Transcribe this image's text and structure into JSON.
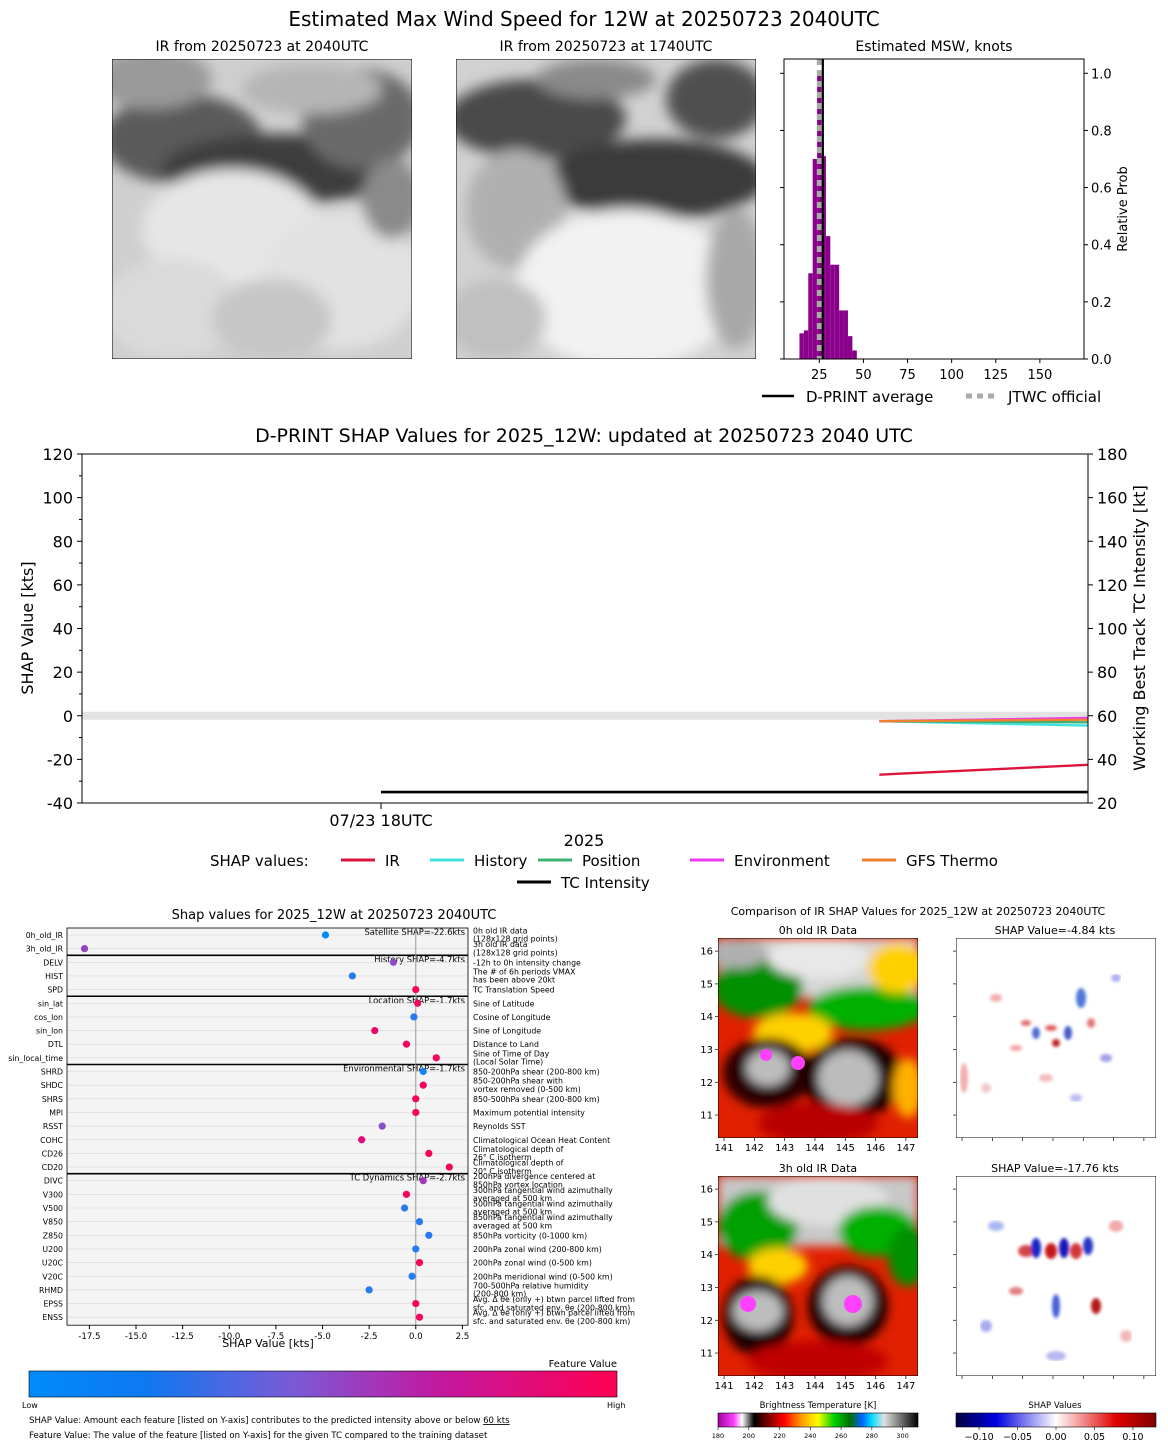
{
  "header": {
    "main_title": "Estimated Max Wind Speed for 12W at 20250723 2040UTC",
    "ir_now_title": "IR from 20250723 at 2040UTC",
    "ir_prev_title": "IR from 20250723 at 1740UTC",
    "hist_title": "Estimated MSW, knots",
    "hist_ylabel": "Relative Prob",
    "legend_dprint": "D-PRINT average",
    "legend_jtwc": "JTWC official"
  },
  "ts": {
    "title": "D-PRINT SHAP Values for 2025_12W: updated at 20250723 2040 UTC",
    "ylabel_left": "SHAP Value [kts]",
    "ylabel_right": "Working Best Track TC Intensity [kt]",
    "xtick": "07/23 18UTC",
    "xlabel": "2025",
    "legend_prefix": "SHAP values:",
    "legend": [
      "IR",
      "History",
      "Position",
      "Environment",
      "GFS Thermo",
      "TC Intensity"
    ]
  },
  "bee": {
    "title": "Shap values for 2025_12W at 20250723 2040UTC",
    "xlabel": "SHAP Value [kts]",
    "group_labels": [
      "Satellite SHAP=-22.6kts",
      "History SHAP=-4.7kts",
      "Location SHAP=-1.7kts",
      "Environmental SHAP=-1.7kts",
      "TC Dynamics SHAP=-2.7kts"
    ],
    "colorbar_title": "Feature Value",
    "colorbar_low": "Low",
    "colorbar_high": "High",
    "note1_pre": "SHAP Value: Amount each feature [listed on Y-axis] contributes to the predicted intensity above or below ",
    "note1_u": "60 kts",
    "note2": "Feature Value: The value of the feature [listed on Y-axis] for the given TC compared to the training dataset"
  },
  "ircmp": {
    "title": "Comparison of IR SHAP Values for 2025_12W at 20250723 2040UTC",
    "p1_title": "0h old IR Data",
    "p2_title": "SHAP Value=-4.84 kts",
    "p3_title": "3h old IR Data",
    "p4_title": "SHAP Value=-17.76 kts",
    "cb1_label": "Brightness Temperature [K]",
    "cb2_label": "SHAP Values"
  },
  "chart_data": [
    {
      "type": "bar",
      "name": "msw-histogram",
      "title": "Estimated MSW, knots",
      "ylabel": "Relative Prob",
      "xlim": [
        5,
        175
      ],
      "ylim": [
        0,
        1.05
      ],
      "xticks": [
        25,
        50,
        75,
        100,
        125,
        150
      ],
      "yticks": [
        0.0,
        0.2,
        0.4,
        0.6,
        0.8,
        1.0
      ],
      "bin_width": 2.5,
      "bins": [
        {
          "x": 15,
          "y": 0.09
        },
        {
          "x": 17.5,
          "y": 0.1
        },
        {
          "x": 20,
          "y": 0.3
        },
        {
          "x": 22.5,
          "y": 0.7
        },
        {
          "x": 25,
          "y": 1.0
        },
        {
          "x": 27.5,
          "y": 0.71
        },
        {
          "x": 30,
          "y": 0.43
        },
        {
          "x": 32.5,
          "y": 0.33
        },
        {
          "x": 35,
          "y": 0.33
        },
        {
          "x": 37.5,
          "y": 0.17
        },
        {
          "x": 40,
          "y": 0.17
        },
        {
          "x": 42.5,
          "y": 0.08
        },
        {
          "x": 45,
          "y": 0.03
        }
      ],
      "dprint_average": 27,
      "jtwc_official": 25,
      "colors": {
        "bars": "#8b008b",
        "dprint": "#000000",
        "jtwc": "#aaaaaa"
      }
    },
    {
      "type": "line",
      "name": "shap-timeseries",
      "title": "D-PRINT SHAP Values for 2025_12W: updated at 20250723 2040 UTC",
      "ylabel": "SHAP Value [kts]",
      "ylabel_right": "Working Best Track TC Intensity [kt]",
      "ylim": [
        -40,
        120
      ],
      "ylim_right": [
        20,
        180
      ],
      "yticks": [
        -40,
        -20,
        0,
        20,
        40,
        60,
        80,
        100,
        120
      ],
      "yticks_right": [
        20,
        40,
        60,
        80,
        100,
        120,
        140,
        160,
        180
      ],
      "xlim_hours": [
        -9.6,
        22.7
      ],
      "xtick_hours": [
        0
      ],
      "xticklabels": [
        "07/23 18UTC"
      ],
      "series": [
        {
          "name": "IR",
          "color": "#dc143c",
          "x": [
            16,
            22.7
          ],
          "y": [
            -27,
            -22.5
          ]
        },
        {
          "name": "History",
          "color": "#40e0e0",
          "x": [
            16,
            22.7
          ],
          "y": [
            -2.5,
            -4.5
          ]
        },
        {
          "name": "Position",
          "color": "#3cb371",
          "x": [
            16,
            22.7
          ],
          "y": [
            -2.5,
            -3.0
          ]
        },
        {
          "name": "Environment",
          "color": "#ee3aee",
          "x": [
            16,
            22.7
          ],
          "y": [
            -2.5,
            -1.0
          ]
        },
        {
          "name": "GFS Thermo",
          "color": "#f08030",
          "x": [
            16,
            22.7
          ],
          "y": [
            -2.5,
            -1.8
          ]
        },
        {
          "name": "TC Intensity",
          "axis": "right",
          "color": "#000000",
          "x": [
            0,
            22.7
          ],
          "y": [
            25,
            25
          ]
        }
      ]
    },
    {
      "type": "scatter",
      "name": "shap-beeswarm",
      "title": "Shap values for 2025_12W at 20250723 2040UTC",
      "xlabel": "SHAP Value [kts]",
      "xlim": [
        -18.7,
        2.8
      ],
      "xticks": [
        -17.5,
        -15.0,
        -12.5,
        -10.0,
        -7.5,
        -5.0,
        -2.5,
        0.0,
        2.5
      ],
      "features": [
        {
          "name": "0h_old_IR",
          "desc": "0h old IR data\n(128x128 grid points)",
          "shap": -4.84,
          "value": 0.0
        },
        {
          "name": "3h_old_IR",
          "desc": "3h old IR data\n(128x128 grid points)",
          "shap": -17.76,
          "value": 0.45
        },
        {
          "name": "DELV",
          "desc": "-12h to 0h intensity change",
          "shap": -1.2,
          "value": 0.4
        },
        {
          "name": "HIST",
          "desc": "The # of 6h periods VMAX\nhas been above 20kt",
          "shap": -3.4,
          "value": 0.1
        },
        {
          "name": "SPD",
          "desc": "TC Translation Speed",
          "shap": 0.0,
          "value": 0.95
        },
        {
          "name": "sin_lat",
          "desc": "Sine of Latitude",
          "shap": 0.1,
          "value": 0.95
        },
        {
          "name": "cos_lon",
          "desc": "Cosine of Longitude",
          "shap": -0.1,
          "value": 0.1
        },
        {
          "name": "sin_lon",
          "desc": "Sine of Longitude",
          "shap": -2.2,
          "value": 0.9
        },
        {
          "name": "DTL",
          "desc": "Distance to Land",
          "shap": -0.5,
          "value": 0.95
        },
        {
          "name": "sin_local_time",
          "desc": "Sine of Time of Day\n(Local Solar Time)",
          "shap": 1.1,
          "value": 0.95
        },
        {
          "name": "SHRD",
          "desc": "850-200hPa shear (200-800 km)",
          "shap": 0.4,
          "value": 0.05
        },
        {
          "name": "SHDC",
          "desc": "850-200hPa shear with\nvortex removed (0-500 km)",
          "shap": 0.4,
          "value": 0.95
        },
        {
          "name": "SHRS",
          "desc": "850-500hPa shear (200-800 km)",
          "shap": 0.0,
          "value": 0.95
        },
        {
          "name": "MPI",
          "desc": "Maximum potential intensity",
          "shap": 0.0,
          "value": 0.95
        },
        {
          "name": "RSST",
          "desc": "Reynolds SST",
          "shap": -1.8,
          "value": 0.4
        },
        {
          "name": "COHC",
          "desc": "Climatological Ocean Heat Content",
          "shap": -2.9,
          "value": 0.85
        },
        {
          "name": "CD26",
          "desc": "Climatological depth of\n26° C isotherm",
          "shap": 0.7,
          "value": 0.95
        },
        {
          "name": "CD20",
          "desc": "Climatological depth of\n20° C isotherm",
          "shap": 1.8,
          "value": 0.95
        },
        {
          "name": "DIVC",
          "desc": "200hPa divergence centered at\n850hPa vortex location",
          "shap": 0.4,
          "value": 0.5
        },
        {
          "name": "V300",
          "desc": "300hPa tangential wind azimuthally\naveraged at 500 km",
          "shap": -0.5,
          "value": 0.95
        },
        {
          "name": "V500",
          "desc": "500hPa tangential wind azimuthally\naveraged at 500 km",
          "shap": -0.6,
          "value": 0.1
        },
        {
          "name": "V850",
          "desc": "850hPa tangential wind azimuthally\naveraged at 500 km",
          "shap": 0.2,
          "value": 0.1
        },
        {
          "name": "Z850",
          "desc": "850hPa vorticity (0-1000 km)",
          "shap": 0.7,
          "value": 0.1
        },
        {
          "name": "U200",
          "desc": "200hPa zonal wind (200-800 km)",
          "shap": 0.0,
          "value": 0.1
        },
        {
          "name": "U20C",
          "desc": "200hPa zonal wind (0-500 km)",
          "shap": 0.2,
          "value": 0.95
        },
        {
          "name": "V20C",
          "desc": "200hPa meridional wind (0-500 km)",
          "shap": -0.2,
          "value": 0.1
        },
        {
          "name": "RHMD",
          "desc": "700-500hPa relative humidity\n(200-800 km)",
          "shap": -2.5,
          "value": 0.1
        },
        {
          "name": "EPSS",
          "desc": "Avg. Δ θe (only +) btwn parcel lifted from\nsfc. and saturated env. θe (200-800 km)",
          "shap": 0.0,
          "value": 0.95
        },
        {
          "name": "ENSS",
          "desc": "Avg. Δ θe (only +) btwn parcel lifted from\nsfc. and saturated env. θe (200-800 km)",
          "shap": 0.2,
          "value": 0.95
        }
      ],
      "colormap": [
        "#008bfb",
        "#7a5ad6",
        "#c3189f",
        "#ff0052"
      ]
    },
    {
      "type": "heatmap",
      "name": "ir-comparison",
      "title": "Comparison of IR SHAP Values for 2025_12W at 20250723 2040UTC",
      "lon_ticks": [
        141,
        142,
        143,
        144,
        145,
        146,
        147
      ],
      "lat_ticks": [
        11,
        12,
        13,
        14,
        15,
        16
      ],
      "xlim": [
        140.8,
        147.4
      ],
      "ylim": [
        10.3,
        16.4
      ],
      "bt_ticks": [
        180,
        200,
        220,
        240,
        260,
        280,
        300
      ],
      "bt_range": [
        180,
        310
      ],
      "shap_ticks": [
        -0.1,
        -0.05,
        0.0,
        0.05,
        0.1
      ],
      "shap_range": [
        -0.13,
        0.13
      ]
    }
  ]
}
